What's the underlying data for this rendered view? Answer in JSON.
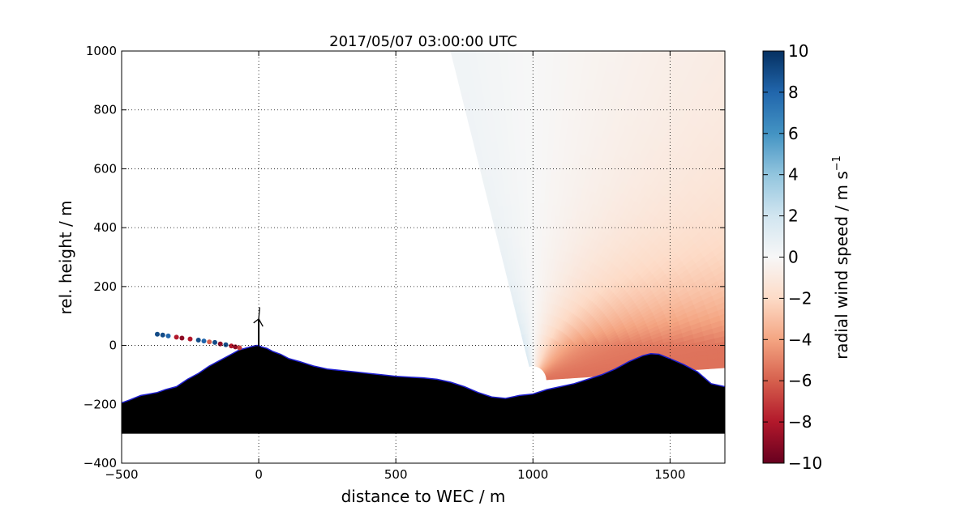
{
  "chart_data": {
    "type": "heatmap",
    "title": "2017/05/07 03:00:00 UTC",
    "xlabel": "distance to WEC / m",
    "ylabel": "rel. height / m",
    "xlim": [
      -500,
      1700
    ],
    "ylim": [
      -400,
      1000
    ],
    "xticks": [
      -500,
      0,
      500,
      1000,
      1500
    ],
    "yticks": [
      -400,
      -200,
      0,
      200,
      400,
      600,
      800,
      1000
    ],
    "grid": true,
    "colorbar": {
      "label_main": "radial wind speed / m s",
      "label_sup": "−1",
      "range": [
        -10,
        10
      ],
      "ticks": [
        10,
        8,
        6,
        4,
        2,
        0,
        -2,
        -4,
        -6,
        -8,
        -10
      ],
      "tick_labels": [
        "10",
        "8",
        "6",
        "4",
        "2",
        "0",
        "−2",
        "−4",
        "−6",
        "−8",
        "−10"
      ],
      "colors": [
        "#67001f",
        "#b2182b",
        "#d6604d",
        "#f4a582",
        "#fddbc7",
        "#f7f7f7",
        "#d1e5f0",
        "#92c5de",
        "#4393c3",
        "#2166ac",
        "#053061"
      ]
    },
    "scan": {
      "center": [
        1000,
        -120
      ],
      "r_min": 50,
      "r_max": 1380,
      "elev_min_deg": 3.6,
      "elev_max_deg": 105,
      "near_field_value": 5.5,
      "far_field_value": 1.5,
      "positive_speed_toward": "left"
    },
    "turbine": {
      "x": 0,
      "hub_height": 90,
      "rotor_radius": 40
    },
    "terrain": {
      "x": [
        -500,
        -470,
        -430,
        -400,
        -370,
        -340,
        -300,
        -260,
        -220,
        -180,
        -140,
        -100,
        -70,
        -50,
        -30,
        -10,
        0,
        10,
        30,
        50,
        80,
        110,
        150,
        200,
        250,
        300,
        350,
        400,
        450,
        500,
        550,
        600,
        650,
        700,
        750,
        800,
        850,
        900,
        950,
        1000,
        1050,
        1100,
        1150,
        1200,
        1250,
        1300,
        1350,
        1400,
        1430,
        1460,
        1500,
        1550,
        1600,
        1650,
        1700
      ],
      "y": [
        -195,
        -185,
        -170,
        -165,
        -160,
        -150,
        -140,
        -115,
        -95,
        -70,
        -50,
        -30,
        -15,
        -10,
        -5,
        0,
        0,
        -5,
        -10,
        -20,
        -30,
        -45,
        -55,
        -70,
        -80,
        -85,
        -90,
        -95,
        -100,
        -105,
        -108,
        -110,
        -115,
        -125,
        -140,
        -160,
        -175,
        -180,
        -170,
        -165,
        -150,
        -140,
        -130,
        -115,
        -100,
        -80,
        -55,
        -35,
        -28,
        -30,
        -45,
        -65,
        -90,
        -130,
        -140
      ],
      "base": -300
    },
    "near_ground_scatter": {
      "x": [
        -370,
        -350,
        -330,
        -300,
        -280,
        -250,
        -220,
        -200,
        -180,
        -160,
        -140,
        -120,
        -100,
        -85,
        -70
      ],
      "y": [
        38,
        35,
        32,
        28,
        25,
        22,
        18,
        15,
        12,
        10,
        5,
        2,
        -2,
        -5,
        -8
      ],
      "v": [
        9,
        9,
        8,
        -8,
        -9,
        -8,
        9,
        8,
        -6,
        9,
        -9,
        9,
        -8,
        -9,
        -7
      ]
    }
  }
}
